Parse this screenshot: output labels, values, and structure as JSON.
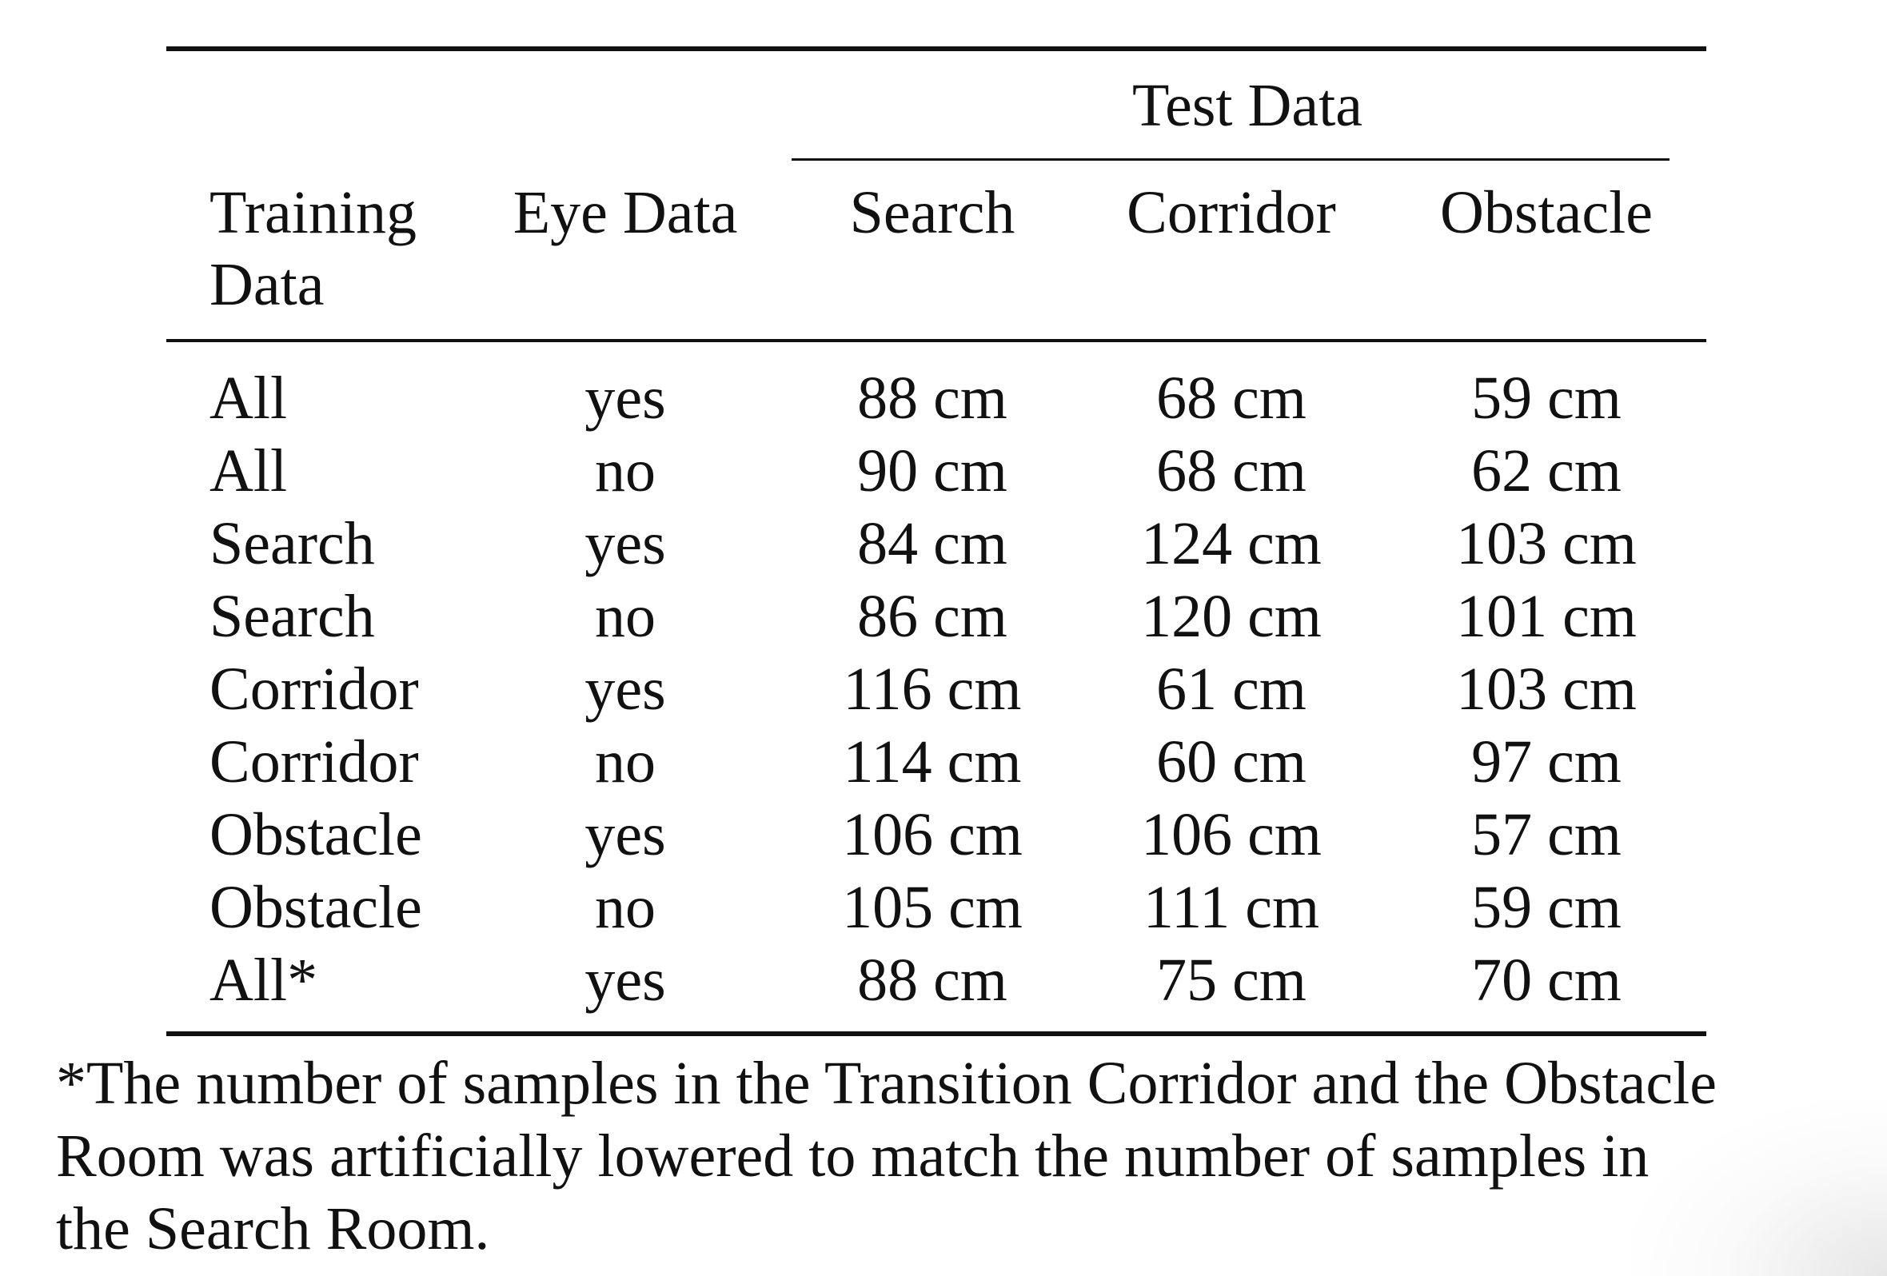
{
  "table": {
    "group_header": "Test Data",
    "headers": {
      "training_line1": "Training",
      "training_line2": "Data",
      "eye": "Eye Data",
      "search": "Search",
      "corridor": "Corridor",
      "obstacle": "Obstacle"
    },
    "rows": [
      {
        "training": "All",
        "eye": "yes",
        "search": "88 cm",
        "corridor": "68 cm",
        "obstacle": "59 cm"
      },
      {
        "training": "All",
        "eye": "no",
        "search": "90 cm",
        "corridor": "68 cm",
        "obstacle": "62 cm"
      },
      {
        "training": "Search",
        "eye": "yes",
        "search": "84 cm",
        "corridor": "124 cm",
        "obstacle": "103 cm"
      },
      {
        "training": "Search",
        "eye": "no",
        "search": "86 cm",
        "corridor": "120 cm",
        "obstacle": "101 cm"
      },
      {
        "training": "Corridor",
        "eye": "yes",
        "search": "116 cm",
        "corridor": "61 cm",
        "obstacle": "103 cm"
      },
      {
        "training": "Corridor",
        "eye": "no",
        "search": "114 cm",
        "corridor": "60 cm",
        "obstacle": "97 cm"
      },
      {
        "training": "Obstacle",
        "eye": "yes",
        "search": "106 cm",
        "corridor": "106 cm",
        "obstacle": "57 cm"
      },
      {
        "training": "Obstacle",
        "eye": "no",
        "search": "105 cm",
        "corridor": "111 cm",
        "obstacle": "59 cm"
      },
      {
        "training": "All*",
        "eye": "yes",
        "search": "88 cm",
        "corridor": "75 cm",
        "obstacle": "70 cm"
      }
    ]
  },
  "footnote": {
    "line1": "*The number of samples in the Transition Corridor and the Obstacle",
    "line2": "Room was artificially lowered to match the number of samples in",
    "line3": "the Search Room."
  }
}
